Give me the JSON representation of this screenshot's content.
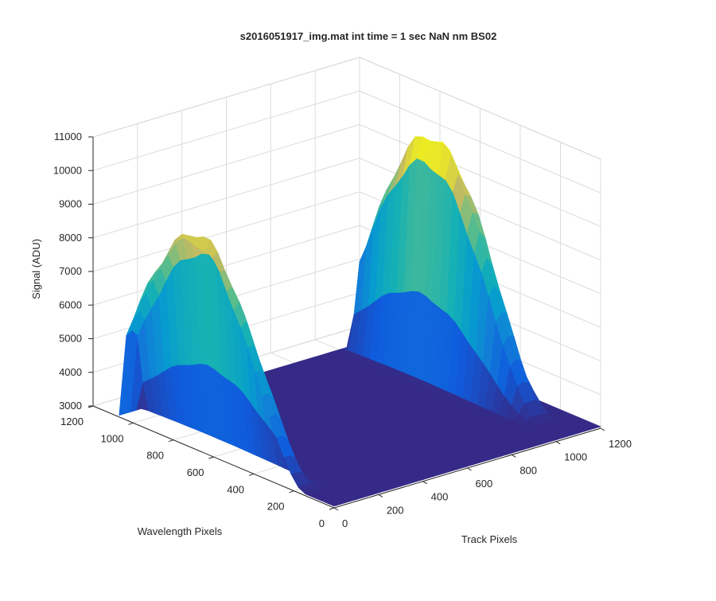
{
  "chart_data": {
    "type": "surface",
    "title": "s2016051917_img.mat int time = 1 sec  NaN nm BS02",
    "xlabel": "Track Pixels",
    "ylabel": "Wavelength Pixels",
    "zlabel": "Signal (ADU)",
    "xlim": [
      0,
      1200
    ],
    "ylim": [
      0,
      1200
    ],
    "zlim": [
      3000,
      11000
    ],
    "x_ticks": [
      "0",
      "200",
      "400",
      "600",
      "800",
      "1000",
      "1200"
    ],
    "y_ticks": [
      "0",
      "200",
      "400",
      "600",
      "800",
      "1000",
      "1200"
    ],
    "z_ticks": [
      "3000",
      "4000",
      "5000",
      "6000",
      "7000",
      "8000",
      "9000",
      "10000",
      "11000"
    ],
    "grid": true,
    "colormap": "parula",
    "baseline": 3050,
    "peaks": [
      {
        "track_pixel": 20,
        "peak_signal": 9200,
        "peak_wavelength_pixel": 1000
      },
      {
        "track_pixel": 1080,
        "peak_signal": 10000,
        "peak_wavelength_pixel": 1000
      }
    ]
  }
}
